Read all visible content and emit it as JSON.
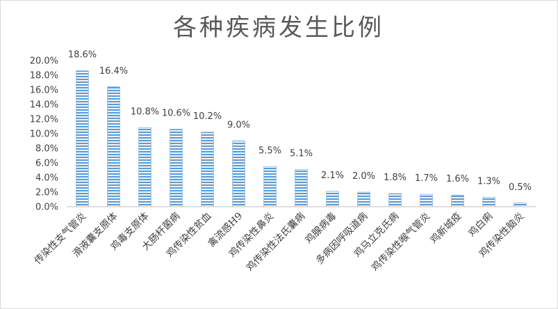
{
  "chart_data": {
    "type": "bar",
    "title": "各种疾病发生比例",
    "categories": [
      "传染性支气管炎",
      "滑液囊支原体",
      "鸡毒支原体",
      "大肠杆菌病",
      "鸡传染性贫血",
      "禽流感H9",
      "鸡传染性鼻炎",
      "鸡传染性法氏囊病",
      "鸡腺病毒",
      "多病因呼吸道病",
      "鸡马立克氏病",
      "鸡传染性喉气管炎",
      "鸡新城疫",
      "鸡白痢",
      "鸡传染性脑炎"
    ],
    "values": [
      18.6,
      16.4,
      10.8,
      10.6,
      10.2,
      9.0,
      5.5,
      5.1,
      2.1,
      2.0,
      1.8,
      1.7,
      1.6,
      1.3,
      0.5
    ],
    "data_labels": [
      "18.6%",
      "16.4%",
      "10.8%",
      "10.6%",
      "10.2%",
      "9.0%",
      "5.5%",
      "5.1%",
      "2.1%",
      "2.0%",
      "1.8%",
      "1.7%",
      "1.6%",
      "1.3%",
      "0.5%"
    ],
    "yticks": [
      "0.0%",
      "2.0%",
      "4.0%",
      "6.0%",
      "8.0%",
      "10.0%",
      "12.0%",
      "14.0%",
      "16.0%",
      "18.0%",
      "20.0%"
    ],
    "ylim": [
      0,
      20
    ],
    "xlabel": "",
    "ylabel": "",
    "grid": false,
    "bar_color": "#5b9bd5",
    "bar_pattern": "horizontal-stripes"
  }
}
